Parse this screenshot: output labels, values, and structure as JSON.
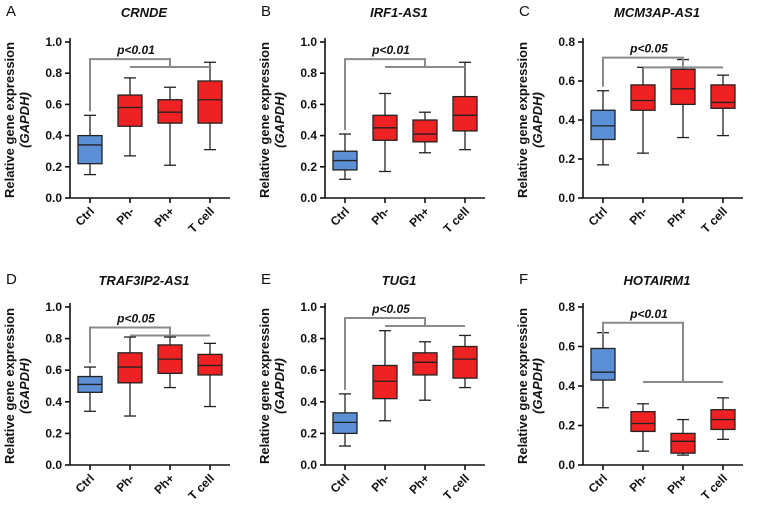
{
  "colors": {
    "ctrl": "#5b8fd6",
    "patient": "#ee2222",
    "axis": "#111111",
    "sig": "#8a8a8a"
  },
  "ylabel": {
    "main": "Relative gene expression",
    "sub": "(GAPDH)"
  },
  "chart_data": [
    {
      "type": "box",
      "panel": "A",
      "title": "CRNDE",
      "categories": [
        "Ctrl",
        "Ph-",
        "Ph+",
        "T cell"
      ],
      "ylim": [
        0,
        1.0
      ],
      "yticks": [
        "0.0",
        "0.2",
        "0.4",
        "0.6",
        "0.8",
        "1.0"
      ],
      "boxes": [
        {
          "min": 0.15,
          "q1": 0.22,
          "median": 0.34,
          "q3": 0.4,
          "max": 0.53
        },
        {
          "min": 0.27,
          "q1": 0.46,
          "median": 0.58,
          "q3": 0.66,
          "max": 0.77
        },
        {
          "min": 0.21,
          "q1": 0.48,
          "median": 0.55,
          "q3": 0.63,
          "max": 0.71
        },
        {
          "min": 0.31,
          "q1": 0.48,
          "median": 0.63,
          "q3": 0.75,
          "max": 0.87
        }
      ],
      "sig": {
        "label": "p<0.01",
        "type": "fork",
        "y": 0.89,
        "arm": 0.84
      }
    },
    {
      "type": "box",
      "panel": "B",
      "title": "IRF1-AS1",
      "categories": [
        "Ctrl",
        "Ph-",
        "Ph+",
        "T cell"
      ],
      "ylim": [
        0,
        1.0
      ],
      "yticks": [
        "0.0",
        "0.2",
        "0.4",
        "0.6",
        "0.8",
        "1.0"
      ],
      "boxes": [
        {
          "min": 0.12,
          "q1": 0.18,
          "median": 0.24,
          "q3": 0.3,
          "max": 0.41
        },
        {
          "min": 0.17,
          "q1": 0.37,
          "median": 0.45,
          "q3": 0.53,
          "max": 0.67
        },
        {
          "min": 0.29,
          "q1": 0.36,
          "median": 0.41,
          "q3": 0.5,
          "max": 0.55
        },
        {
          "min": 0.31,
          "q1": 0.43,
          "median": 0.53,
          "q3": 0.65,
          "max": 0.87
        }
      ],
      "sig": {
        "label": "p<0.01",
        "type": "fork",
        "y": 0.89,
        "arm": 0.84
      }
    },
    {
      "type": "box",
      "panel": "C",
      "title": "MCM3AP-AS1",
      "categories": [
        "Ctrl",
        "Ph-",
        "Ph+",
        "T cell"
      ],
      "ylim": [
        0,
        0.8
      ],
      "yticks": [
        "0.0",
        "0.2",
        "0.4",
        "0.6",
        "0.8"
      ],
      "boxes": [
        {
          "min": 0.17,
          "q1": 0.3,
          "median": 0.37,
          "q3": 0.45,
          "max": 0.55
        },
        {
          "min": 0.23,
          "q1": 0.45,
          "median": 0.5,
          "q3": 0.58,
          "max": 0.67
        },
        {
          "min": 0.31,
          "q1": 0.48,
          "median": 0.56,
          "q3": 0.66,
          "max": 0.71
        },
        {
          "min": 0.32,
          "q1": 0.46,
          "median": 0.49,
          "q3": 0.58,
          "max": 0.63
        }
      ],
      "sig": {
        "label": "p<0.05",
        "type": "fork",
        "y": 0.72,
        "arm": 0.67
      }
    },
    {
      "type": "box",
      "panel": "D",
      "title": "TRAF3IP2-AS1",
      "categories": [
        "Ctrl",
        "Ph-",
        "Ph+",
        "T cell"
      ],
      "ylim": [
        0,
        1.0
      ],
      "yticks": [
        "0.0",
        "0.2",
        "0.4",
        "0.6",
        "0.8",
        "1.0"
      ],
      "boxes": [
        {
          "min": 0.34,
          "q1": 0.46,
          "median": 0.51,
          "q3": 0.56,
          "max": 0.62
        },
        {
          "min": 0.31,
          "q1": 0.52,
          "median": 0.62,
          "q3": 0.71,
          "max": 0.81
        },
        {
          "min": 0.49,
          "q1": 0.58,
          "median": 0.67,
          "q3": 0.76,
          "max": 0.81
        },
        {
          "min": 0.37,
          "q1": 0.57,
          "median": 0.63,
          "q3": 0.7,
          "max": 0.77
        }
      ],
      "sig": {
        "label": "p<0.05",
        "type": "fork",
        "y": 0.87,
        "arm": 0.82
      }
    },
    {
      "type": "box",
      "panel": "E",
      "title": "TUG1",
      "categories": [
        "Ctrl",
        "Ph-",
        "Ph+",
        "T cell"
      ],
      "ylim": [
        0,
        1.0
      ],
      "yticks": [
        "0.0",
        "0.2",
        "0.4",
        "0.6",
        "0.8",
        "1.0"
      ],
      "boxes": [
        {
          "min": 0.12,
          "q1": 0.2,
          "median": 0.27,
          "q3": 0.33,
          "max": 0.45
        },
        {
          "min": 0.28,
          "q1": 0.42,
          "median": 0.53,
          "q3": 0.63,
          "max": 0.85
        },
        {
          "min": 0.41,
          "q1": 0.57,
          "median": 0.65,
          "q3": 0.71,
          "max": 0.78
        },
        {
          "min": 0.49,
          "q1": 0.55,
          "median": 0.67,
          "q3": 0.75,
          "max": 0.82
        }
      ],
      "sig": {
        "label": "p<0.05",
        "type": "fork",
        "y": 0.93,
        "arm": 0.88
      }
    },
    {
      "type": "box",
      "panel": "F",
      "title": "HOTAIRM1",
      "categories": [
        "Ctrl",
        "Ph-",
        "Ph+",
        "T cell"
      ],
      "ylim": [
        0,
        0.8
      ],
      "yticks": [
        "0.0",
        "0.2",
        "0.4",
        "0.6",
        "0.8"
      ],
      "boxes": [
        {
          "min": 0.29,
          "q1": 0.43,
          "median": 0.47,
          "q3": 0.59,
          "max": 0.67
        },
        {
          "min": 0.07,
          "q1": 0.17,
          "median": 0.21,
          "q3": 0.27,
          "max": 0.31
        },
        {
          "min": 0.05,
          "q1": 0.06,
          "median": 0.12,
          "q3": 0.16,
          "max": 0.23
        },
        {
          "min": 0.13,
          "q1": 0.18,
          "median": 0.23,
          "q3": 0.28,
          "max": 0.34
        }
      ],
      "sig": {
        "label": "p<0.01",
        "type": "tree",
        "y": 0.72,
        "arm": 0.42
      }
    }
  ]
}
